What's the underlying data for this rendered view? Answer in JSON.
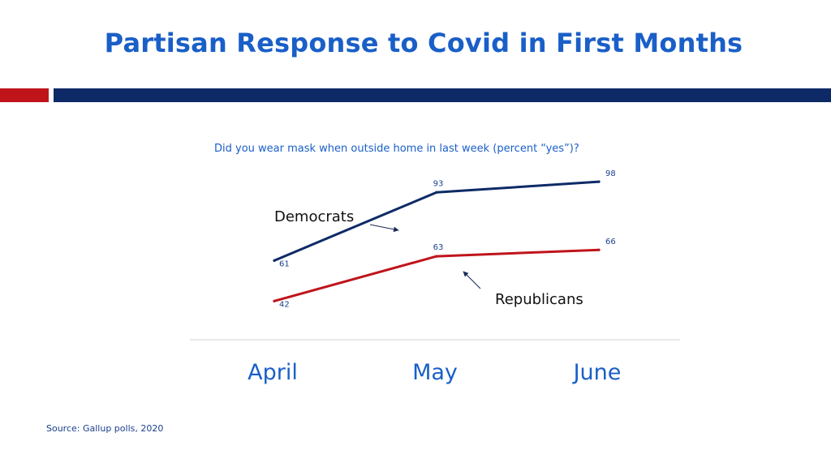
{
  "slide": {
    "title": "Partisan Response to Covid in First Months",
    "source": "Source: Gallup polls, 2020"
  },
  "colors": {
    "title": "#1a5fc8",
    "accent_red": "#c0141b",
    "accent_navy": "#0e2a66",
    "democrats_line": "#0e2a66",
    "republicans_line": "#c0141b",
    "axis_label": "#1a5fc8",
    "data_label": "#1a3f8c"
  },
  "chart_data": {
    "type": "line",
    "title": "Did you wear mask when outside home in last week (percent “yes”)?",
    "categories": [
      "April",
      "May",
      "June"
    ],
    "series": [
      {
        "name": "Democrats",
        "values": [
          61,
          93,
          98
        ],
        "color": "#0e2a66"
      },
      {
        "name": "Republicans",
        "values": [
          42,
          63,
          66
        ],
        "color": "#c0141b"
      }
    ],
    "data_labels": true,
    "ylim": [
      30,
      100
    ],
    "grid": false,
    "legend": "inline annotations with arrows"
  }
}
